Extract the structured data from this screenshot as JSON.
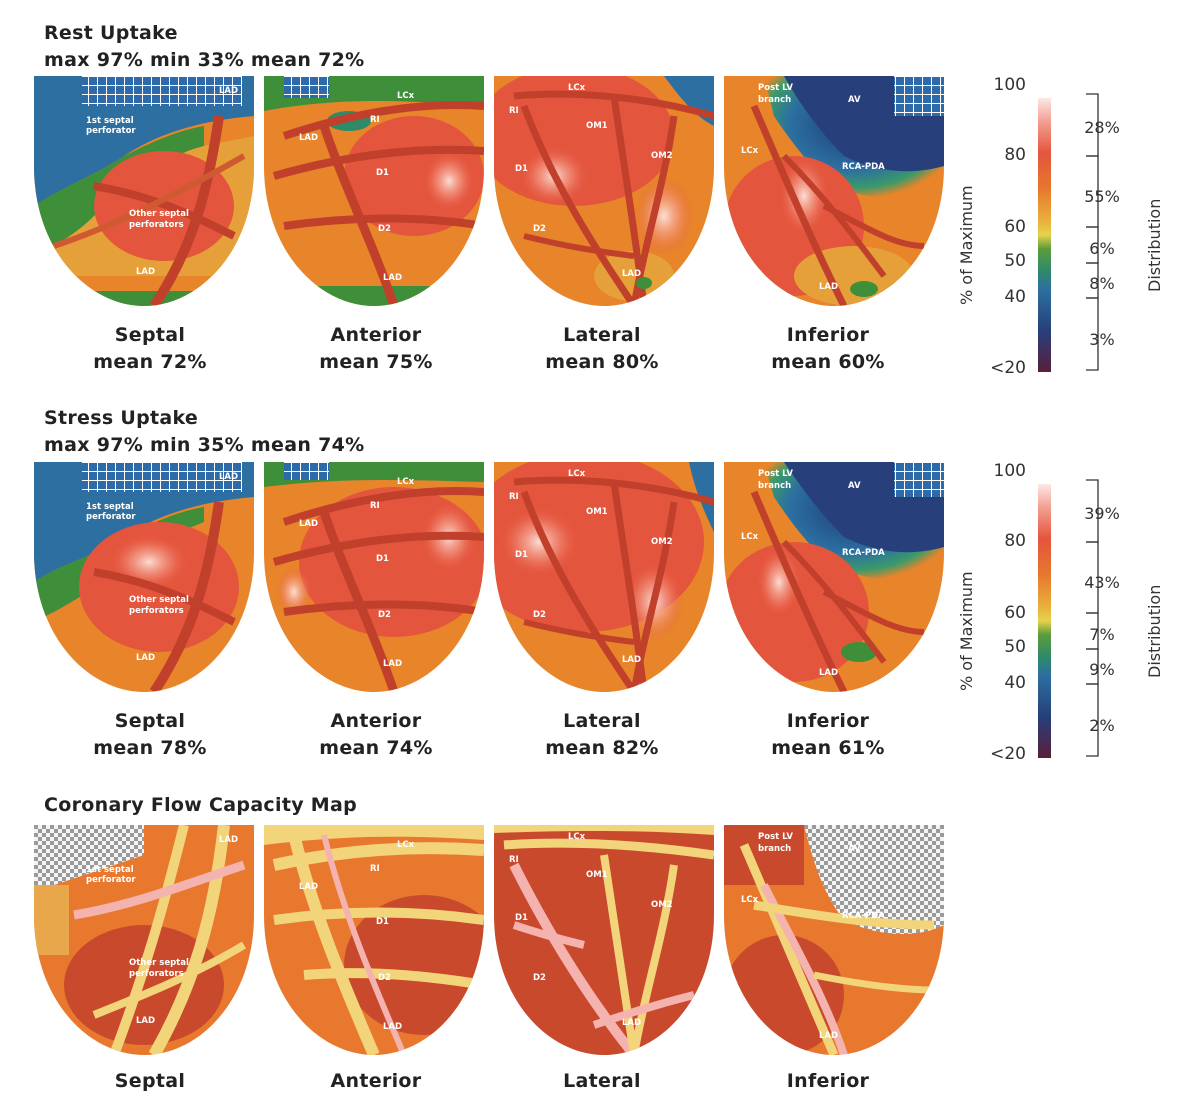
{
  "sections": {
    "rest": {
      "title": "Rest Uptake",
      "stats": "max 97%  min 33%  mean 72%",
      "views": [
        {
          "name": "Septal",
          "mean": "mean 72%"
        },
        {
          "name": "Anterior",
          "mean": "mean 75%"
        },
        {
          "name": "Lateral",
          "mean": "mean 80%"
        },
        {
          "name": "Inferior",
          "mean": "mean 60%"
        }
      ],
      "distribution": [
        "28%",
        "55%",
        "6%",
        "8%",
        "3%"
      ]
    },
    "stress": {
      "title": "Stress Uptake",
      "stats": "max 97%  min 35%  mean 74%",
      "views": [
        {
          "name": "Septal",
          "mean": "mean 78%"
        },
        {
          "name": "Anterior",
          "mean": "mean 74%"
        },
        {
          "name": "Lateral",
          "mean": "mean 82%"
        },
        {
          "name": "Inferior",
          "mean": "mean 61%"
        }
      ],
      "distribution": [
        "39%",
        "43%",
        "7%",
        "9%",
        "2%"
      ]
    },
    "cfc": {
      "title": "Coronary Flow Capacity Map",
      "views": [
        {
          "name": "Septal"
        },
        {
          "name": "Anterior"
        },
        {
          "name": "Lateral"
        },
        {
          "name": "Inferior"
        }
      ]
    }
  },
  "vessel_labels": {
    "septal": [
      "LAD",
      "1st septal",
      "perforator",
      "Other septal",
      "perforators",
      "LAD"
    ],
    "anterior": [
      "LCx",
      "RI",
      "LAD",
      "D1",
      "D2",
      "LAD"
    ],
    "lateral": [
      "LCx",
      "RI",
      "OM1",
      "OM2",
      "D1",
      "D2",
      "LAD"
    ],
    "inferior": [
      "Post LV",
      "branch",
      "AV",
      "LCx",
      "RCA-PDA",
      "LAD"
    ]
  },
  "scale": {
    "axis_label": "% of Maximum",
    "dist_label": "Distribution",
    "ticks": [
      "100",
      "80",
      "60",
      "50",
      "40",
      "<20"
    ]
  },
  "colors": {
    "scale_white": "#fbe3e0",
    "scale_red": "#e2503a",
    "scale_orange": "#e8842a",
    "scale_yellow": "#ecd24a",
    "scale_green": "#3f8f3a",
    "scale_blue": "#2c6fa0",
    "scale_navy": "#263a72",
    "scale_maroon": "#5a1f3a"
  }
}
